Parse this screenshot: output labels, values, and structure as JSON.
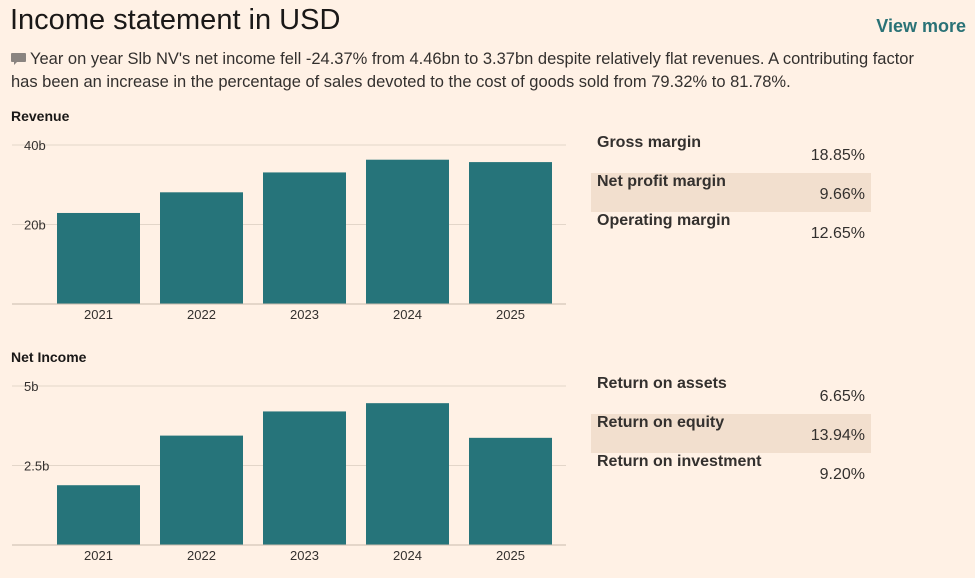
{
  "header": {
    "title": "Income statement in USD",
    "view_more": "View more"
  },
  "summary": {
    "icon": "comment-icon",
    "text": "Year on year Slb NV's net income fell -24.37% from 4.46bn to 3.37bn despite relatively flat revenues. A contributing factor has been an increase in the percentage of sales devoted to the cost of goods sold from 79.32% to 81.78%."
  },
  "colors": {
    "background": "#fff1e5",
    "bar": "#26747a",
    "shade": "#f2dfce",
    "link": "#2a7276"
  },
  "chart_data": [
    {
      "type": "bar",
      "title": "Revenue",
      "categories": [
        "2021",
        "2022",
        "2023",
        "2024",
        "2025"
      ],
      "values": [
        22.9,
        28.1,
        33.1,
        36.3,
        35.7
      ],
      "ylim": [
        0,
        40
      ],
      "yticks": [
        20,
        40
      ],
      "ytick_labels": [
        "20b",
        "40b"
      ],
      "unit": "bn USD",
      "xlabel": "",
      "ylabel": ""
    },
    {
      "type": "bar",
      "title": "Net Income",
      "categories": [
        "2021",
        "2022",
        "2023",
        "2024",
        "2025"
      ],
      "values": [
        1.88,
        3.44,
        4.2,
        4.46,
        3.37
      ],
      "ylim": [
        0,
        5
      ],
      "yticks": [
        2.5,
        5
      ],
      "ytick_labels": [
        "2.5b",
        "5b"
      ],
      "unit": "bn USD",
      "xlabel": "",
      "ylabel": ""
    }
  ],
  "margins": [
    {
      "label": "Gross margin",
      "value": "18.85%"
    },
    {
      "label": "Net profit margin",
      "value": "9.66%"
    },
    {
      "label": "Operating margin",
      "value": "12.65%"
    }
  ],
  "returns": [
    {
      "label": "Return on assets",
      "value": "6.65%"
    },
    {
      "label": "Return on equity",
      "value": "13.94%"
    },
    {
      "label": "Return on investment",
      "value": "9.20%"
    }
  ]
}
